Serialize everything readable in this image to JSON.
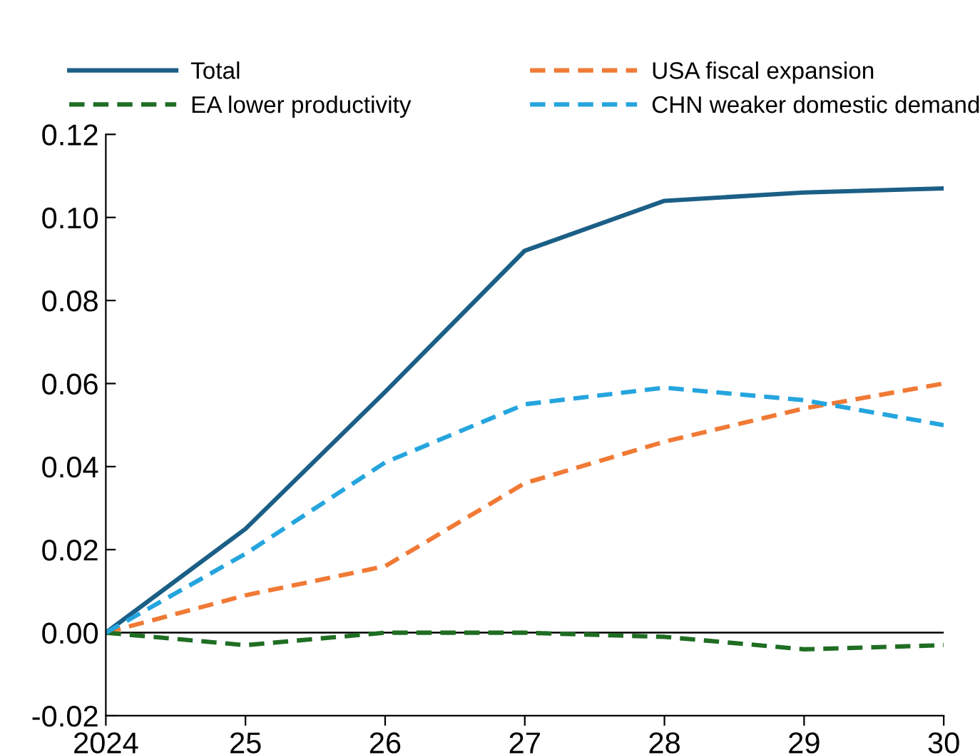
{
  "chart_data": {
    "type": "line",
    "x": [
      2024,
      2025,
      2026,
      2027,
      2028,
      2029,
      2030
    ],
    "series": [
      {
        "name": "Total",
        "color": "#1b5f86",
        "line_style": "solid",
        "values": [
          0,
          0.025,
          0.058,
          0.092,
          0.104,
          0.106,
          0.107
        ]
      },
      {
        "name": "USA fiscal expansion",
        "color": "#f07a35",
        "line_style": "dashed",
        "values": [
          0,
          0.009,
          0.016,
          0.036,
          0.046,
          0.054,
          0.06
        ]
      },
      {
        "name": "EA lower productivity",
        "color": "#1f6e23",
        "line_style": "dashed",
        "values": [
          0,
          -0.003,
          0,
          0,
          -0.001,
          -0.004,
          -0.003
        ]
      },
      {
        "name": "CHN weaker domestic demand",
        "color": "#25a5de",
        "line_style": "dashed",
        "values": [
          0,
          0.019,
          0.041,
          0.055,
          0.059,
          0.056,
          0.05
        ]
      }
    ],
    "xlim": [
      2024,
      2030
    ],
    "xticks": [
      {
        "value": 2024,
        "label": "2024"
      },
      {
        "value": 2025,
        "label": "25"
      },
      {
        "value": 2026,
        "label": "26"
      },
      {
        "value": 2027,
        "label": "27"
      },
      {
        "value": 2028,
        "label": "28"
      },
      {
        "value": 2029,
        "label": "29"
      },
      {
        "value": 2030,
        "label": "30"
      }
    ],
    "ylim": [
      -0.02,
      0.12
    ],
    "yticks": [
      {
        "value": -0.02,
        "label": "-0.02"
      },
      {
        "value": 0,
        "label": "0.00"
      },
      {
        "value": 0.02,
        "label": "0.02"
      },
      {
        "value": 0.04,
        "label": "0.04"
      },
      {
        "value": 0.06,
        "label": "0.06"
      },
      {
        "value": 0.08,
        "label": "0.08"
      },
      {
        "value": 0.1,
        "label": "0.10"
      },
      {
        "value": 0.12,
        "label": "0.12"
      }
    ],
    "ref_lines": [
      {
        "axis": "y",
        "value": 0,
        "color": "#000000"
      }
    ],
    "grid": false,
    "legend": "top",
    "marker": "none"
  }
}
